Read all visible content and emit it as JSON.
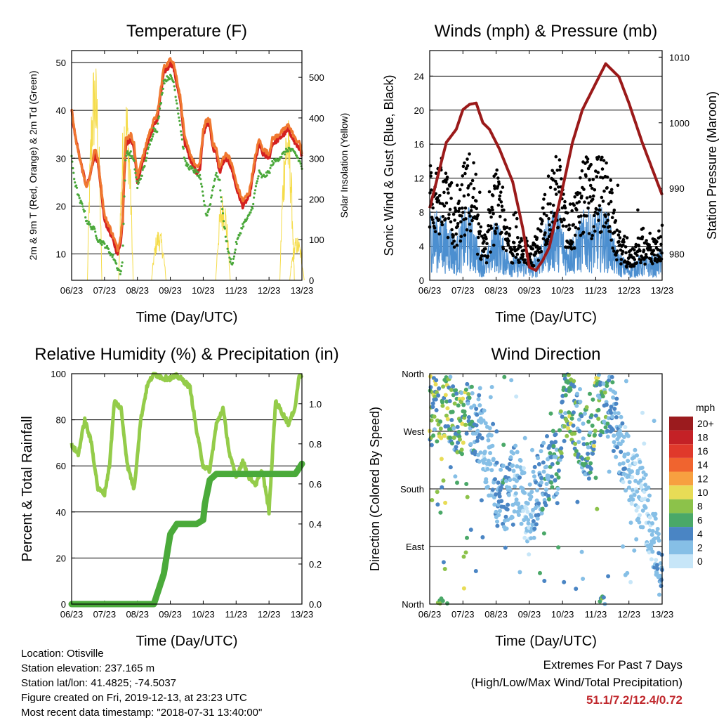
{
  "x_ticks": [
    "06/23",
    "07/23",
    "08/23",
    "09/23",
    "10/23",
    "11/23",
    "12/23",
    "13/23"
  ],
  "x_title": "Time (Day/UTC)",
  "footer": {
    "location": "Location: Otisville",
    "elevation": "Station elevation: 237.165 m",
    "latlon": "Station lat/lon: 41.4825; -74.5037",
    "created": "Figure created on Fri, 2019-12-13, at 23:23 UTC",
    "recent": "Most recent data timestamp: \"2018-07-31 13:40:00\"",
    "extremes_line1": "Extremes For Past 7 Days",
    "extremes_line2": "(High/Low/Max Wind/Total Precipitation)",
    "extremes_value": "51.1/7.2/12.4/0.72"
  },
  "chart_data": [
    {
      "type": "line",
      "title": "Temperature (F)",
      "xlabel": "Time (Day/UTC)",
      "ylabel": "2m & 9m T (Red, Orange) & 2m Td (Green)",
      "ylabel_right": "Solar Insolation (Yellow)",
      "x_ticks": [
        "06/23",
        "07/23",
        "08/23",
        "09/23",
        "10/23",
        "11/23",
        "12/23",
        "13/23"
      ],
      "ylim": [
        4.5,
        52.5
      ],
      "yticks": [
        10,
        20,
        30,
        40,
        50
      ],
      "ylim_right": [
        0,
        566
      ],
      "yticks_right": [
        0,
        100,
        200,
        300,
        400,
        500
      ],
      "x": [
        0,
        0.1,
        0.25,
        0.35,
        0.45,
        0.55,
        0.7,
        0.8,
        1.0,
        1.2,
        1.3,
        1.4,
        1.5,
        1.55,
        1.6,
        1.65,
        1.8,
        1.9,
        2.0,
        2.1,
        2.2,
        2.3,
        2.5,
        2.6,
        2.8,
        2.95,
        3.0,
        3.1,
        3.3,
        3.45,
        3.6,
        3.8,
        3.9,
        4.0,
        4.1,
        4.2,
        4.3,
        4.4,
        4.5,
        4.6,
        4.7,
        4.8,
        4.9,
        5.0,
        5.2,
        5.4,
        5.5,
        5.6,
        5.7,
        5.8,
        6.0,
        6.1,
        6.3,
        6.45,
        6.6,
        6.8,
        6.95,
        7.0
      ],
      "series": [
        {
          "name": "2m T",
          "color": "#d42020",
          "values": [
            40,
            35,
            30,
            27,
            24,
            26,
            31,
            29,
            17,
            14,
            12,
            10,
            13,
            17,
            27,
            33,
            34,
            32,
            25,
            28,
            30,
            33,
            37,
            38,
            48,
            49,
            50,
            49,
            42,
            33,
            30,
            27,
            28,
            35,
            37,
            37,
            32,
            31,
            27,
            29,
            30,
            29,
            27,
            24,
            20,
            22,
            26,
            30,
            33,
            31,
            30,
            33,
            34,
            35,
            36,
            33,
            32,
            30
          ]
        },
        {
          "name": "9m T",
          "color": "#f07830",
          "values": [
            40,
            35,
            30,
            27,
            24,
            26,
            32,
            30,
            18,
            15,
            13,
            11,
            14,
            18,
            28,
            34,
            35,
            33,
            26,
            29,
            31,
            34,
            38,
            39,
            49,
            50,
            51,
            50,
            43,
            34,
            31,
            28,
            29,
            36,
            38,
            38,
            33,
            32,
            28,
            30,
            31,
            30,
            28,
            25,
            21,
            23,
            27,
            31,
            34,
            32,
            31,
            34,
            35,
            36,
            37,
            34,
            33,
            31
          ]
        },
        {
          "name": "2m Td",
          "color": "#4aa83a",
          "values": [
            30,
            25,
            21,
            20,
            17,
            16,
            15,
            13,
            12,
            10,
            9,
            7,
            6,
            9,
            22,
            31,
            31,
            29,
            24,
            26,
            28,
            31,
            36,
            36,
            46,
            47,
            47,
            46,
            37,
            29,
            28,
            27,
            26,
            22,
            18,
            20,
            24,
            27,
            25,
            18,
            13,
            9,
            8,
            12,
            16,
            18,
            20,
            24,
            27,
            26,
            27,
            29,
            30,
            31,
            32,
            31,
            29,
            28
          ]
        }
      ],
      "series_right": {
        "name": "Solar Insolation",
        "color": "#f5dc4a"
      }
    },
    {
      "type": "line",
      "title": "Winds (mph) & Pressure (mb)",
      "xlabel": "Time (Day/UTC)",
      "ylabel": "Sonic Wind & Gust (Blue, Black)",
      "ylabel_right": "Station Pressure (Maroon)",
      "x_ticks": [
        "06/23",
        "07/23",
        "08/23",
        "09/23",
        "10/23",
        "11/23",
        "12/23",
        "13/23"
      ],
      "ylim": [
        0,
        27
      ],
      "yticks": [
        0,
        4,
        8,
        12,
        16,
        20,
        24
      ],
      "ylim_right": [
        976,
        1011
      ],
      "yticks_right": [
        980,
        990,
        1000,
        1010
      ],
      "series": [
        {
          "name": "Sonic Wind",
          "color": "#4c8fd0"
        },
        {
          "name": "Gust",
          "color": "#000000"
        },
        {
          "name": "Station Pressure",
          "color": "#9b1a1a",
          "x": [
            0,
            0.2,
            0.5,
            0.8,
            1.0,
            1.2,
            1.4,
            1.6,
            1.8,
            2.1,
            2.5,
            2.8,
            3.0,
            3.2,
            3.4,
            3.6,
            4.0,
            4.3,
            4.6,
            5.0,
            5.3,
            5.5,
            5.7,
            6.0,
            6.4,
            6.7,
            7.0
          ],
          "values": [
            987,
            991,
            997,
            999,
            1002,
            1002.8,
            1003,
            1000,
            999,
            996,
            991,
            984,
            978,
            977.5,
            979,
            981,
            990,
            997,
            1002,
            1006,
            1009,
            1008,
            1007,
            1003,
            997,
            993,
            989
          ]
        }
      ]
    },
    {
      "type": "line",
      "title": "Relative Humidity (%) & Precipitation (in)",
      "xlabel": "Time (Day/UTC)",
      "ylabel": "Percent & Total Rainfall",
      "x_ticks": [
        "06/23",
        "07/23",
        "08/23",
        "09/23",
        "10/23",
        "11/23",
        "12/23",
        "13/23"
      ],
      "ylim": [
        0,
        100
      ],
      "yticks": [
        0,
        20,
        40,
        60,
        80,
        100
      ],
      "ylim_right": [
        0,
        1.15
      ],
      "yticks_right": [
        "0.0",
        "0.2",
        "0.4",
        "0.6",
        "0.8",
        "1.0"
      ],
      "series": [
        {
          "name": "Relative Humidity",
          "color": "#94cc4a",
          "x": [
            0,
            0.2,
            0.4,
            0.6,
            0.8,
            1.0,
            1.15,
            1.3,
            1.5,
            1.7,
            1.9,
            2.0,
            2.1,
            2.3,
            2.5,
            2.8,
            3.0,
            3.2,
            3.4,
            3.6,
            3.8,
            4.0,
            4.2,
            4.4,
            4.6,
            4.8,
            5.0,
            5.2,
            5.4,
            5.6,
            5.8,
            6.0,
            6.2,
            6.4,
            6.6,
            6.8,
            6.9,
            7.0
          ],
          "values": [
            69,
            65,
            80,
            70,
            50,
            48,
            60,
            88,
            85,
            60,
            50,
            65,
            80,
            95,
            100,
            98,
            98,
            99,
            97,
            94,
            75,
            60,
            58,
            78,
            85,
            65,
            55,
            62,
            55,
            52,
            58,
            40,
            88,
            83,
            78,
            86,
            98,
            100
          ]
        },
        {
          "name": "Total Precipitation",
          "color": "#4aaa3a",
          "x": [
            0,
            2.5,
            2.6,
            2.8,
            3.0,
            3.2,
            3.5,
            3.8,
            4.0,
            4.05,
            4.2,
            4.4,
            5.0,
            6.0,
            6.8,
            7.0
          ],
          "values": [
            0,
            0,
            0.05,
            0.15,
            0.35,
            0.4,
            0.4,
            0.4,
            0.42,
            0.5,
            0.62,
            0.65,
            0.65,
            0.65,
            0.65,
            0.7
          ]
        }
      ]
    },
    {
      "type": "scatter",
      "title": "Wind Direction",
      "xlabel": "Time (Day/UTC)",
      "ylabel": "Direction (Colored By Speed)",
      "x_ticks": [
        "06/23",
        "07/23",
        "08/23",
        "09/23",
        "10/23",
        "11/23",
        "12/23",
        "13/23"
      ],
      "yticks": [
        "North",
        "East",
        "South",
        "West",
        "North"
      ],
      "legend": {
        "title": "mph",
        "labels": [
          "20+",
          "18",
          "16",
          "14",
          "12",
          "10",
          "8",
          "6",
          "4",
          "2",
          "0"
        ],
        "colors": [
          "#9b1b1e",
          "#c42126",
          "#e0392b",
          "#f0642f",
          "#f7a040",
          "#e8dc56",
          "#8cc24a",
          "#4aa868",
          "#4a85c4",
          "#86bfe6",
          "#c7e6f8"
        ]
      }
    }
  ]
}
